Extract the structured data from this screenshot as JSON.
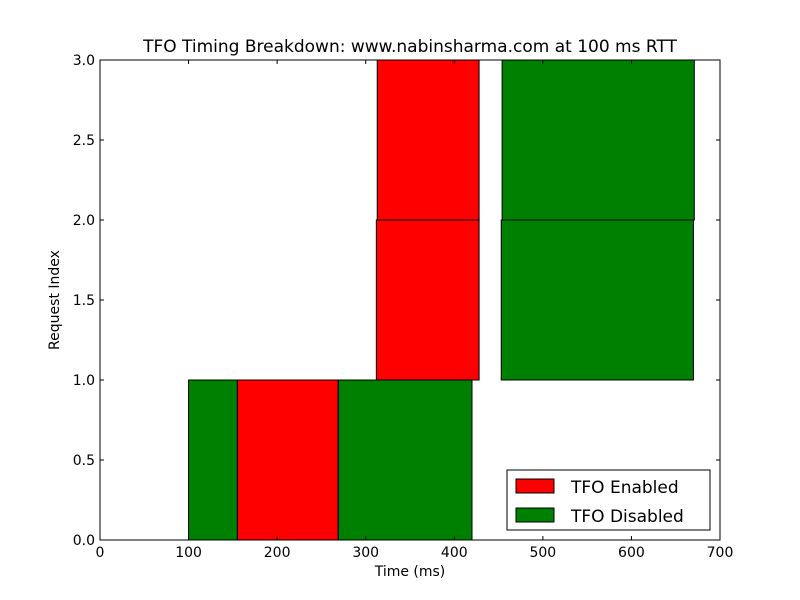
{
  "chart_data": {
    "type": "bar",
    "title": "TFO Timing Breakdown: www.nabinsharma.com at 100 ms RTT",
    "xlabel": "Time (ms)",
    "ylabel": "Request Index",
    "xlim": [
      0,
      700
    ],
    "ylim": [
      0,
      3
    ],
    "xticks": [
      0,
      100,
      200,
      300,
      400,
      500,
      600,
      700
    ],
    "yticks": [
      0.0,
      0.5,
      1.0,
      1.5,
      2.0,
      2.5,
      3.0
    ],
    "xtick_labels": [
      "0",
      "100",
      "200",
      "300",
      "400",
      "500",
      "600",
      "700"
    ],
    "ytick_labels": [
      "0.0",
      "0.5",
      "1.0",
      "1.5",
      "2.0",
      "2.5",
      "3.0"
    ],
    "grid": false,
    "legend": {
      "placement": "bottom-right",
      "entries": [
        "TFO Enabled",
        "TFO Disabled"
      ]
    },
    "colors": {
      "TFO Enabled": "#ff0000",
      "TFO Disabled": "#008000"
    },
    "series": [
      {
        "name": "TFO Enabled",
        "segments": [
          {
            "x_start": 155,
            "x_end": 269,
            "y_start": 0,
            "y_end": 1
          },
          {
            "x_start": 312,
            "x_end": 428,
            "y_start": 1,
            "y_end": 2
          },
          {
            "x_start": 313,
            "x_end": 428,
            "y_start": 2,
            "y_end": 3
          }
        ]
      },
      {
        "name": "TFO Disabled",
        "segments": [
          {
            "x_start": 100,
            "x_end": 155,
            "y_start": 0,
            "y_end": 1
          },
          {
            "x_start": 269,
            "x_end": 420,
            "y_start": 0,
            "y_end": 1
          },
          {
            "x_start": 453,
            "x_end": 670,
            "y_start": 1,
            "y_end": 2
          },
          {
            "x_start": 454,
            "x_end": 671,
            "y_start": 2,
            "y_end": 3
          }
        ]
      }
    ]
  }
}
